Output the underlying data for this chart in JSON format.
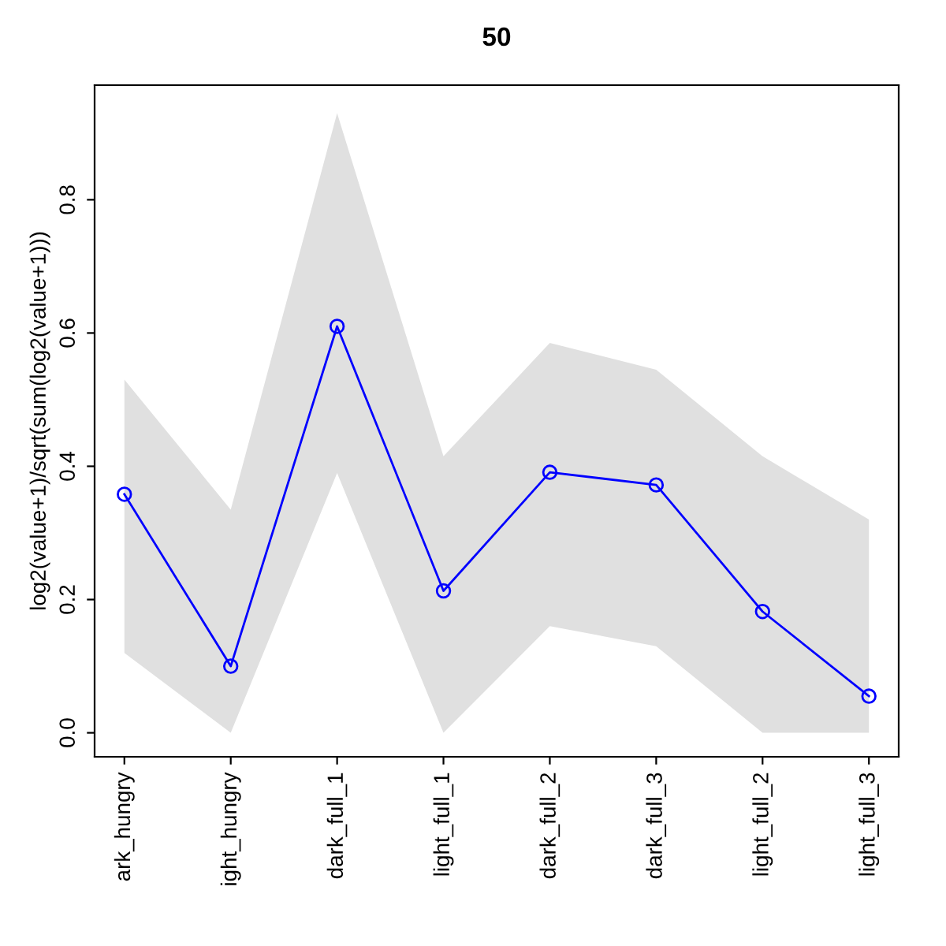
{
  "chart_data": {
    "type": "line",
    "title": "50",
    "ylabel": "log2(value+1)/sqrt(sum(log2(value+1)))",
    "categories": [
      "ark_hungry",
      "ight_hungry",
      "dark_full_1",
      "light_full_1",
      "dark_full_2",
      "dark_full_3",
      "light_full_2",
      "light_full_3"
    ],
    "series": [
      {
        "color": "#0000ff",
        "values": [
          0.358,
          0.1,
          0.61,
          0.213,
          0.391,
          0.372,
          0.182,
          0.055
        ],
        "lower": [
          0.12,
          0.0,
          0.39,
          0.0,
          0.16,
          0.13,
          0.0,
          0.0
        ],
        "upper": [
          0.53,
          0.335,
          0.93,
          0.415,
          0.585,
          0.545,
          0.415,
          0.32
        ]
      }
    ],
    "ylim": [
      -0.036,
      0.972
    ],
    "yticks": [
      {
        "value": 0,
        "label": "0.0"
      },
      0.2,
      0.4,
      0.6,
      0.8
    ],
    "grid": false,
    "legend": false,
    "marker": "circle",
    "line_style": "solid"
  }
}
